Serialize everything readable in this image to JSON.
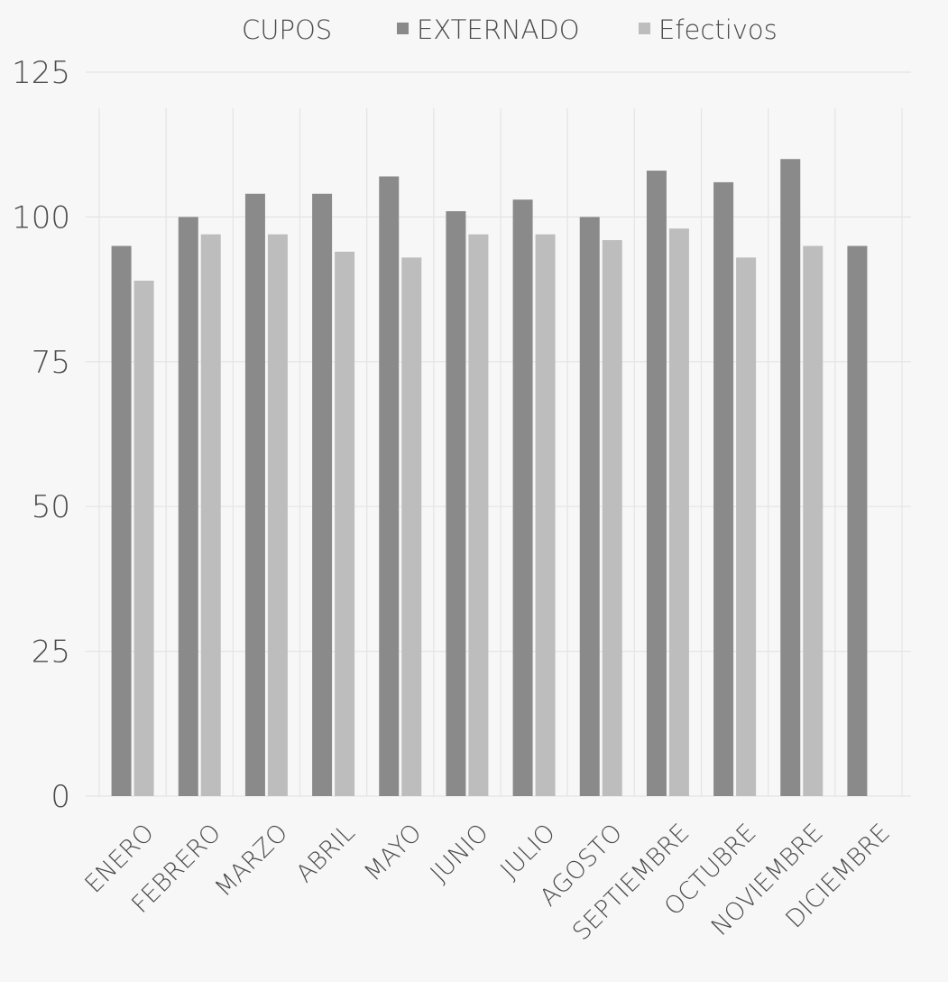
{
  "chart_data": {
    "type": "bar",
    "categories": [
      "ENERO",
      "FEBRERO",
      "MARZO",
      "ABRIL",
      "MAYO",
      "JUNIO",
      "JULIO",
      "AGOSTO",
      "SEPTIEMBRE",
      "OCTUBRE",
      "NOVIEMBRE",
      "DICIEMBRE"
    ],
    "legend_title": "CUPOS",
    "series": [
      {
        "name": "EXTERNADO",
        "color": "#8a8a8a",
        "values": [
          95,
          100,
          104,
          104,
          107,
          101,
          103,
          100,
          108,
          106,
          110,
          95
        ]
      },
      {
        "name": "Efectivos",
        "color": "#bdbdbd",
        "values": [
          89,
          97,
          97,
          94,
          93,
          97,
          97,
          96,
          98,
          93,
          95,
          0
        ]
      }
    ],
    "yticks": [
      0,
      25,
      50,
      75,
      100,
      125
    ],
    "ylim": [
      0,
      125
    ],
    "grid": true,
    "legend_position": "top-center",
    "xlabel": "",
    "ylabel": ""
  }
}
